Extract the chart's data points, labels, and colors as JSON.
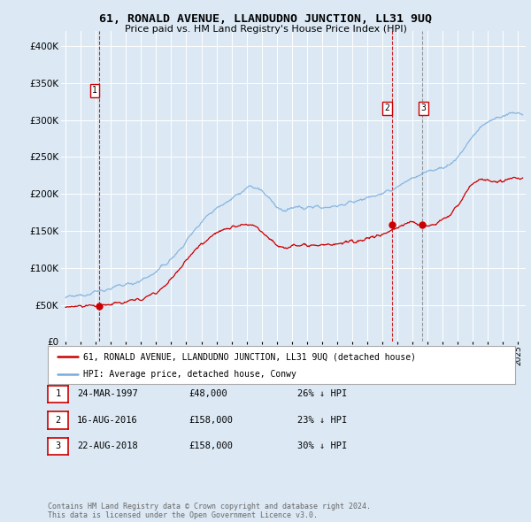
{
  "title": "61, RONALD AVENUE, LLANDUDNO JUNCTION, LL31 9UQ",
  "subtitle": "Price paid vs. HM Land Registry's House Price Index (HPI)",
  "bg_color": "#dce9f5",
  "hpi_color": "#7aaddb",
  "price_color": "#cc0000",
  "grid_color": "#ffffff",
  "ylim": [
    0,
    420000
  ],
  "yticks": [
    0,
    50000,
    100000,
    150000,
    200000,
    250000,
    300000,
    350000,
    400000
  ],
  "ytick_labels": [
    "£0",
    "£50K",
    "£100K",
    "£150K",
    "£200K",
    "£250K",
    "£300K",
    "£350K",
    "£400K"
  ],
  "xlim_start": 1994.7,
  "xlim_end": 2025.5,
  "xtick_years": [
    1995,
    1996,
    1997,
    1998,
    1999,
    2000,
    2001,
    2002,
    2003,
    2004,
    2005,
    2006,
    2007,
    2008,
    2009,
    2010,
    2011,
    2012,
    2013,
    2014,
    2015,
    2016,
    2017,
    2018,
    2019,
    2020,
    2021,
    2022,
    2023,
    2024,
    2025
  ],
  "t1_x": 1997.23,
  "t1_y": 48000,
  "t2_x": 2016.62,
  "t2_y": 158000,
  "t3_x": 2018.64,
  "t3_y": 158000,
  "legend_line1": "61, RONALD AVENUE, LLANDUDNO JUNCTION, LL31 9UQ (detached house)",
  "legend_line2": "HPI: Average price, detached house, Conwy",
  "table_rows": [
    {
      "num": 1,
      "date": "24-MAR-1997",
      "price": "£48,000",
      "hpi": "26% ↓ HPI"
    },
    {
      "num": 2,
      "date": "16-AUG-2016",
      "price": "£158,000",
      "hpi": "23% ↓ HPI"
    },
    {
      "num": 3,
      "date": "22-AUG-2018",
      "price": "£158,000",
      "hpi": "30% ↓ HPI"
    }
  ],
  "footer": "Contains HM Land Registry data © Crown copyright and database right 2024.\nThis data is licensed under the Open Government Licence v3.0."
}
